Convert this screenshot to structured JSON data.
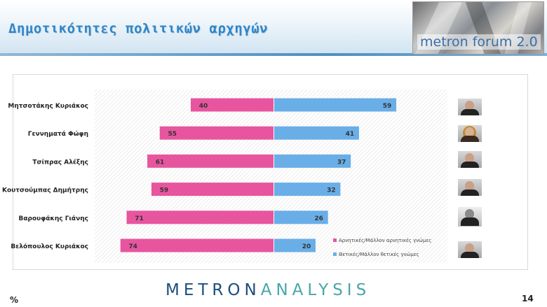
{
  "header": {
    "title": "Δημοτικότητες πολιτικών αρχηγών",
    "logo_text": "metron forum 2.0"
  },
  "footer": {
    "brand_part1": "METRON",
    "brand_part2": "ANALYSIS",
    "unit": "%",
    "page_number": "14"
  },
  "colors": {
    "negative": "#e8559f",
    "positive": "#6aaee8",
    "title": "#2f86c8"
  },
  "chart_data": {
    "type": "bar",
    "orientation": "horizontal-diverging",
    "categories": [
      "Μητσοτάκης Κυριάκος",
      "Γεννηματά Φώφη",
      "Τσίπρας Αλέξης",
      "Κουτσούμπας Δημήτρης",
      "Βαρουφάκης Γιάνης",
      "Βελόπουλος Κυριάκος"
    ],
    "series": [
      {
        "name": "Αρνητικές/Μάλλον αρνητικές γνώμες",
        "color": "#e8559f",
        "values": [
          40,
          55,
          61,
          59,
          71,
          74
        ]
      },
      {
        "name": "Θετικές/Μάλλον θετικές γνώμες",
        "color": "#6aaee8",
        "values": [
          59,
          41,
          37,
          32,
          26,
          20
        ]
      }
    ],
    "xlim": [
      -80,
      80
    ],
    "grid": false,
    "legend_position": "bottom-right"
  }
}
